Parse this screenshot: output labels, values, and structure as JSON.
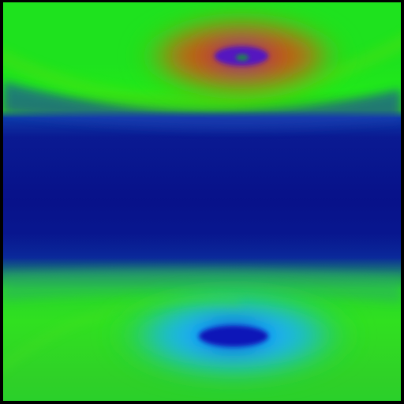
{
  "image": {
    "kind": "color-field",
    "palette": {
      "frame": "#000000",
      "green": "#1ee21e",
      "deep_blue": "#08128a",
      "orange_red": "#c8501a",
      "violet": "#6a20c8",
      "cyan": "#20b0ff",
      "core_blue": "#1020d0"
    }
  }
}
